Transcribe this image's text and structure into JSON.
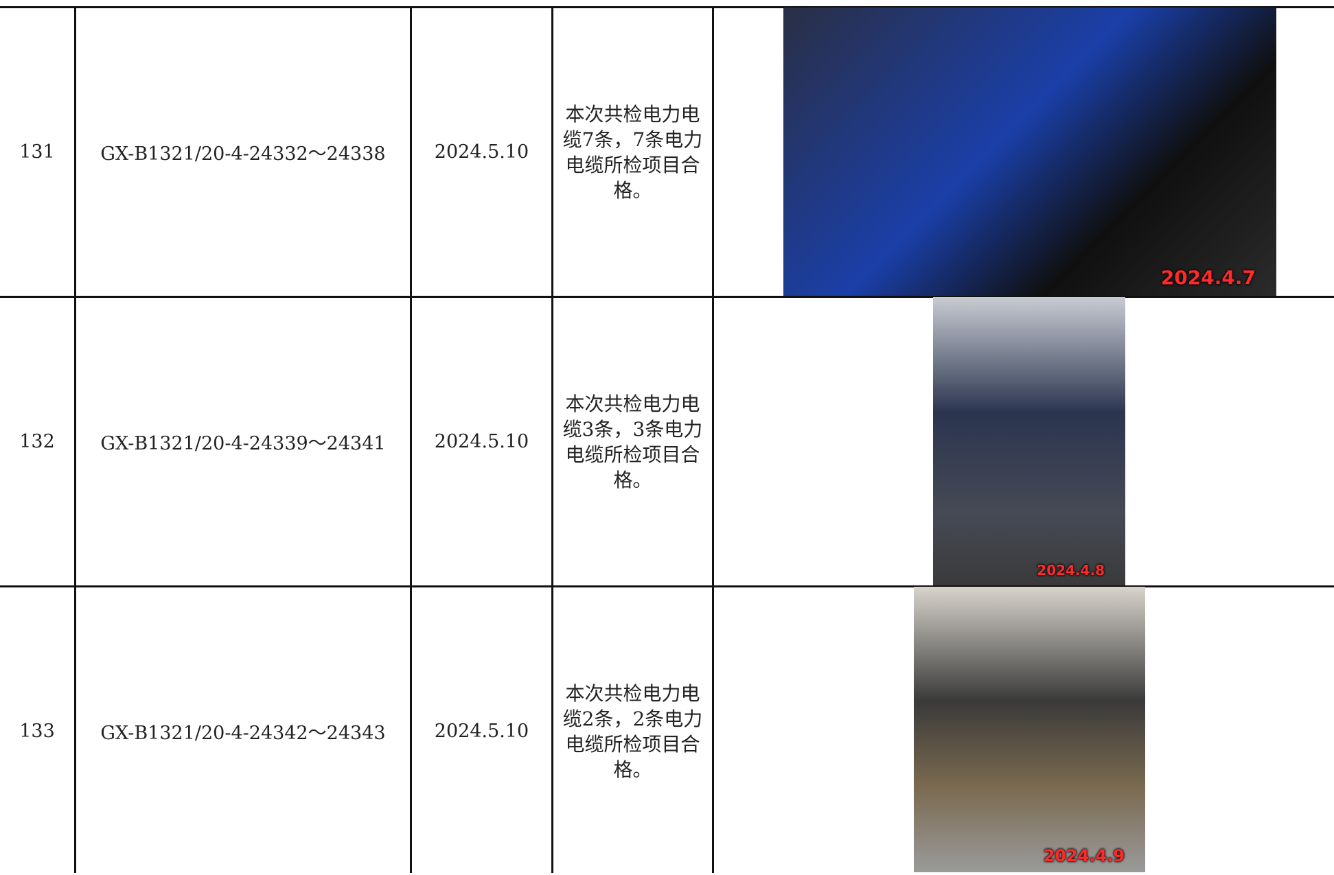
{
  "table": {
    "rows": [
      {
        "no": "131",
        "code": "GX-B1321/20-4-24332～24338",
        "date": "2024.5.10",
        "result": "本次共检电力电缆7条，7条电力电缆所检项目合格。",
        "photo_stamp": "2024.4.7"
      },
      {
        "no": "132",
        "code": "GX-B1321/20-4-24339～24341",
        "date": "2024.5.10",
        "result": "本次共检电力电缆3条，3条电力电缆所检项目合格。",
        "photo_stamp": "2024.4.8"
      },
      {
        "no": "133",
        "code": "GX-B1321/20-4-24342～24343",
        "date": "2024.5.10",
        "result": "本次共检电力电缆2条，2条电力电缆所检项目合格。",
        "photo_stamp": "2024.4.9"
      }
    ]
  }
}
